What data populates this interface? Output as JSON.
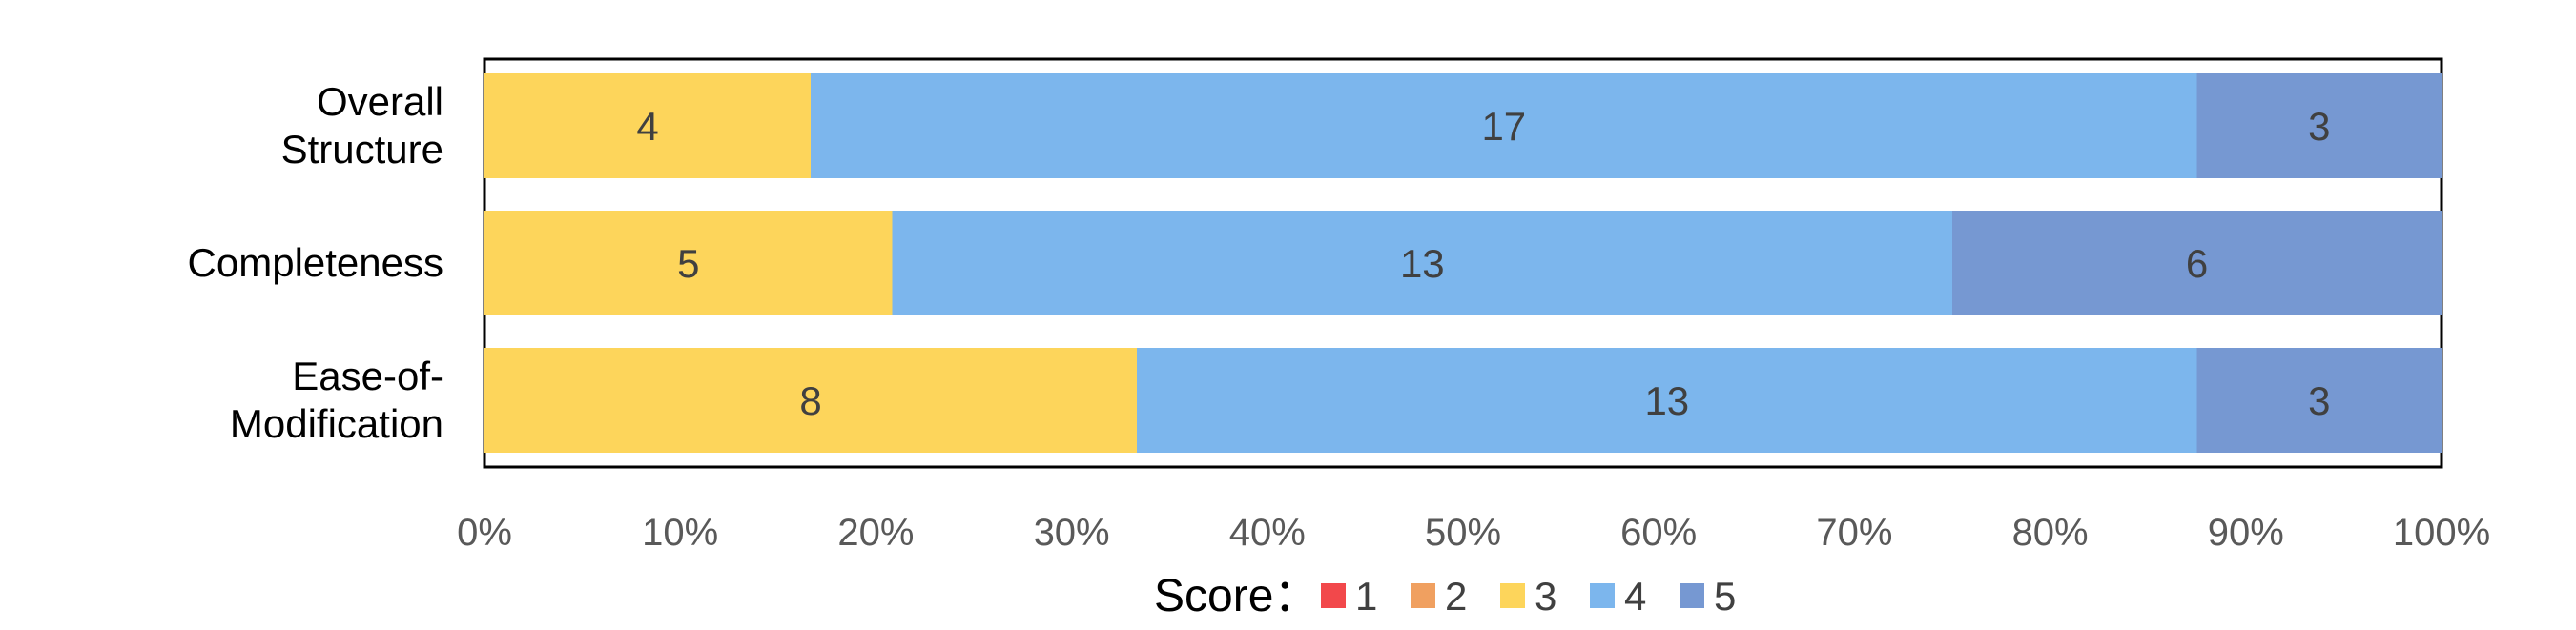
{
  "chart_data": {
    "type": "bar",
    "orientation": "horizontal",
    "stacked": "percent",
    "categories": [
      "Overall\nStructure",
      "Completeness",
      "Ease-of-\nModification"
    ],
    "series": [
      {
        "name": "1",
        "color": "#f2484b",
        "values": [
          0,
          0,
          0
        ]
      },
      {
        "name": "2",
        "color": "#f0a060",
        "values": [
          0,
          0,
          0
        ]
      },
      {
        "name": "3",
        "color": "#fdd55b",
        "values": [
          4,
          5,
          8
        ]
      },
      {
        "name": "4",
        "color": "#7cb6ed",
        "values": [
          17,
          13,
          13
        ]
      },
      {
        "name": "5",
        "color": "#7698d2",
        "values": [
          3,
          6,
          3
        ]
      }
    ],
    "xticks": [
      "0%",
      "10%",
      "20%",
      "30%",
      "40%",
      "50%",
      "60%",
      "70%",
      "80%",
      "90%",
      "100%"
    ],
    "xlim": [
      0,
      100
    ],
    "grid": false,
    "legend": {
      "title": "Score：",
      "placement": "bottom"
    }
  }
}
